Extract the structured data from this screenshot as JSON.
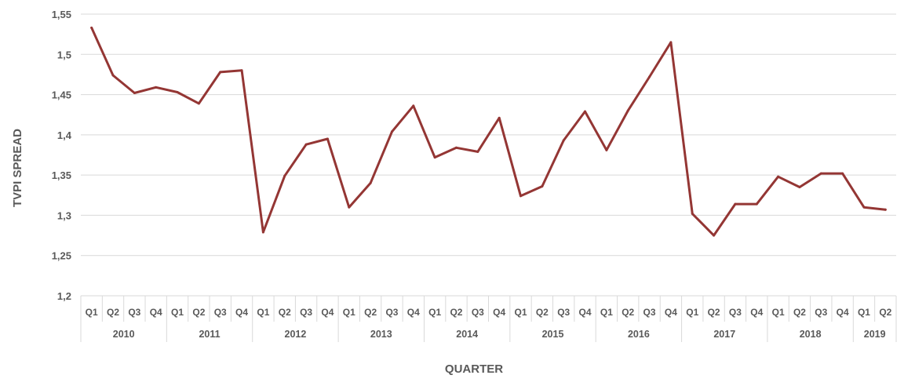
{
  "chart_data": {
    "type": "line",
    "xlabel": "QUARTER",
    "ylabel": "TVPI SPREAD",
    "ylim": [
      1.2,
      1.55
    ],
    "y_ticks": [
      "1,2",
      "1,25",
      "1,3",
      "1,35",
      "1,4",
      "1,45",
      "1,5",
      "1,55"
    ],
    "y_tick_values": [
      1.2,
      1.25,
      1.3,
      1.35,
      1.4,
      1.45,
      1.5,
      1.55
    ],
    "grid": true,
    "line_color": "#943634",
    "groups": [
      {
        "year": "2010",
        "quarters": [
          "Q1",
          "Q2",
          "Q3",
          "Q4"
        ]
      },
      {
        "year": "2011",
        "quarters": [
          "Q1",
          "Q2",
          "Q3",
          "Q4"
        ]
      },
      {
        "year": "2012",
        "quarters": [
          "Q1",
          "Q2",
          "Q3",
          "Q4"
        ]
      },
      {
        "year": "2013",
        "quarters": [
          "Q1",
          "Q2",
          "Q3",
          "Q4"
        ]
      },
      {
        "year": "2014",
        "quarters": [
          "Q1",
          "Q2",
          "Q3",
          "Q4"
        ]
      },
      {
        "year": "2015",
        "quarters": [
          "Q1",
          "Q2",
          "Q3",
          "Q4"
        ]
      },
      {
        "year": "2016",
        "quarters": [
          "Q1",
          "Q2",
          "Q3",
          "Q4"
        ]
      },
      {
        "year": "2017",
        "quarters": [
          "Q1",
          "Q2",
          "Q3",
          "Q4"
        ]
      },
      {
        "year": "2018",
        "quarters": [
          "Q1",
          "Q2",
          "Q3",
          "Q4"
        ]
      },
      {
        "year": "2019",
        "quarters": [
          "Q1",
          "Q2"
        ]
      }
    ],
    "values": [
      1.533,
      1.474,
      1.452,
      1.459,
      1.453,
      1.439,
      1.478,
      1.48,
      1.279,
      1.349,
      1.388,
      1.395,
      1.31,
      1.34,
      1.404,
      1.436,
      1.372,
      1.384,
      1.379,
      1.421,
      1.324,
      1.336,
      1.393,
      1.429,
      1.381,
      1.43,
      1.472,
      1.515,
      1.302,
      1.275,
      1.314,
      1.314,
      1.348,
      1.335,
      1.352,
      1.352,
      1.31,
      1.307
    ]
  }
}
